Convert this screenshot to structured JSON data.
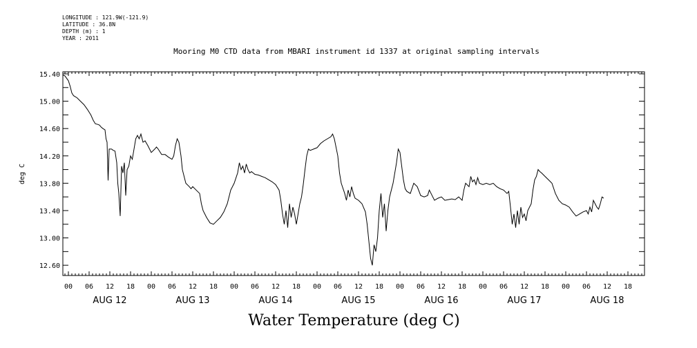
{
  "meta": {
    "lines": [
      "LONGITUDE : 121.9W(-121.9)",
      "LATITUDE : 36.8N",
      "DEPTH (m) : 1",
      "YEAR : 2011"
    ]
  },
  "chart_data": {
    "type": "line",
    "title": "Mooring M0 CTD data from MBARI instrument id 1337 at original sampling intervals",
    "xlabel": "Water Temperature (deg C)",
    "ylabel": "deg C",
    "xlim_hours": [
      0,
      168
    ],
    "ylim": [
      12.45,
      15.43
    ],
    "grid": false,
    "y_ticks": [
      "12.60",
      "13.00",
      "13.40",
      "13.80",
      "14.20",
      "14.60",
      "15.00",
      "15.40"
    ],
    "x_hour_labels": [
      "00",
      "06",
      "12",
      "18",
      "00",
      "06",
      "12",
      "18",
      "00",
      "06",
      "12",
      "18",
      "00",
      "06",
      "12",
      "18",
      "00",
      "06",
      "12",
      "18",
      "00",
      "06",
      "12",
      "18",
      "00",
      "06",
      "12",
      "18"
    ],
    "x_day_labels": [
      "AUG 12",
      "AUG 13",
      "AUG 14",
      "AUG 15",
      "AUG 16",
      "AUG 17",
      "AUG 18"
    ],
    "series": [
      {
        "points": [
          [
            -1.5,
            15.38
          ],
          [
            -1,
            15.37
          ],
          [
            0,
            15.3
          ],
          [
            0.5,
            15.22
          ],
          [
            1,
            15.12
          ],
          [
            1.5,
            15.08
          ],
          [
            2.5,
            15.05
          ],
          [
            3.5,
            15.0
          ],
          [
            4.5,
            14.95
          ],
          [
            5.5,
            14.88
          ],
          [
            6.5,
            14.8
          ],
          [
            7.2,
            14.72
          ],
          [
            7.8,
            14.67
          ],
          [
            8.5,
            14.66
          ],
          [
            9,
            14.65
          ],
          [
            9.5,
            14.62
          ],
          [
            10,
            14.6
          ],
          [
            10.6,
            14.58
          ],
          [
            10.9,
            14.45
          ],
          [
            11.2,
            14.4
          ],
          [
            11.5,
            13.84
          ],
          [
            11.8,
            14.3
          ],
          [
            12.5,
            14.3
          ],
          [
            13,
            14.28
          ],
          [
            13.5,
            14.27
          ],
          [
            14,
            14.1
          ],
          [
            14.3,
            13.8
          ],
          [
            14.6,
            13.65
          ],
          [
            15,
            13.32
          ],
          [
            15.4,
            14.05
          ],
          [
            15.8,
            13.95
          ],
          [
            16.2,
            14.1
          ],
          [
            16.6,
            13.62
          ],
          [
            17,
            14.0
          ],
          [
            17.5,
            14.05
          ],
          [
            18,
            14.2
          ],
          [
            18.5,
            14.15
          ],
          [
            19,
            14.3
          ],
          [
            19.5,
            14.45
          ],
          [
            20,
            14.5
          ],
          [
            20.5,
            14.45
          ],
          [
            21,
            14.52
          ],
          [
            21.6,
            14.4
          ],
          [
            22.2,
            14.42
          ],
          [
            23,
            14.35
          ],
          [
            24,
            14.25
          ],
          [
            25,
            14.3
          ],
          [
            25.5,
            14.33
          ],
          [
            26,
            14.3
          ],
          [
            27,
            14.22
          ],
          [
            28,
            14.22
          ],
          [
            29,
            14.18
          ],
          [
            30,
            14.15
          ],
          [
            30.5,
            14.2
          ],
          [
            31,
            14.35
          ],
          [
            31.5,
            14.45
          ],
          [
            32,
            14.4
          ],
          [
            32.6,
            14.2
          ],
          [
            33,
            14.0
          ],
          [
            34,
            13.8
          ],
          [
            35,
            13.75
          ],
          [
            35.5,
            13.72
          ],
          [
            36,
            13.75
          ],
          [
            37,
            13.7
          ],
          [
            38,
            13.65
          ],
          [
            38.5,
            13.5
          ],
          [
            39,
            13.4
          ],
          [
            40,
            13.3
          ],
          [
            41,
            13.22
          ],
          [
            42,
            13.2
          ],
          [
            43,
            13.25
          ],
          [
            44,
            13.3
          ],
          [
            45,
            13.38
          ],
          [
            46,
            13.5
          ],
          [
            46.5,
            13.6
          ],
          [
            47,
            13.7
          ],
          [
            48,
            13.8
          ],
          [
            49,
            13.95
          ],
          [
            49.5,
            14.1
          ],
          [
            50,
            14.0
          ],
          [
            50.5,
            14.05
          ],
          [
            51,
            13.95
          ],
          [
            51.5,
            14.08
          ],
          [
            52,
            14.0
          ],
          [
            52.5,
            13.95
          ],
          [
            53,
            13.97
          ],
          [
            54,
            13.93
          ],
          [
            55,
            13.92
          ],
          [
            56,
            13.9
          ],
          [
            57,
            13.88
          ],
          [
            58,
            13.85
          ],
          [
            59,
            13.82
          ],
          [
            60,
            13.78
          ],
          [
            61,
            13.7
          ],
          [
            61.5,
            13.55
          ],
          [
            62,
            13.35
          ],
          [
            62.5,
            13.2
          ],
          [
            63,
            13.4
          ],
          [
            63.5,
            13.15
          ],
          [
            64,
            13.5
          ],
          [
            64.5,
            13.3
          ],
          [
            65,
            13.45
          ],
          [
            65.5,
            13.35
          ],
          [
            66,
            13.2
          ],
          [
            66.5,
            13.35
          ],
          [
            67,
            13.5
          ],
          [
            67.5,
            13.6
          ],
          [
            68,
            13.78
          ],
          [
            68.5,
            14.0
          ],
          [
            69,
            14.2
          ],
          [
            69.5,
            14.3
          ],
          [
            70,
            14.28
          ],
          [
            71,
            14.3
          ],
          [
            72,
            14.32
          ],
          [
            73,
            14.38
          ],
          [
            74,
            14.42
          ],
          [
            75,
            14.45
          ],
          [
            76,
            14.48
          ],
          [
            76.5,
            14.52
          ],
          [
            77,
            14.45
          ],
          [
            78,
            14.2
          ],
          [
            78.5,
            13.95
          ],
          [
            79,
            13.8
          ],
          [
            80,
            13.65
          ],
          [
            80.5,
            13.55
          ],
          [
            81,
            13.7
          ],
          [
            81.5,
            13.6
          ],
          [
            82,
            13.75
          ],
          [
            82.5,
            13.65
          ],
          [
            83,
            13.58
          ],
          [
            84,
            13.55
          ],
          [
            85,
            13.5
          ],
          [
            86,
            13.38
          ],
          [
            86.5,
            13.2
          ],
          [
            87,
            12.95
          ],
          [
            87.5,
            12.7
          ],
          [
            88,
            12.6
          ],
          [
            88.5,
            12.9
          ],
          [
            89,
            12.8
          ],
          [
            89.5,
            13.0
          ],
          [
            90,
            13.4
          ],
          [
            90.5,
            13.65
          ],
          [
            91,
            13.3
          ],
          [
            91.5,
            13.5
          ],
          [
            92,
            13.1
          ],
          [
            92.5,
            13.4
          ],
          [
            93,
            13.6
          ],
          [
            94,
            13.8
          ],
          [
            95,
            14.1
          ],
          [
            95.5,
            14.3
          ],
          [
            96,
            14.25
          ],
          [
            96.5,
            14.05
          ],
          [
            97,
            13.85
          ],
          [
            97.5,
            13.72
          ],
          [
            98,
            13.68
          ],
          [
            99,
            13.65
          ],
          [
            100,
            13.8
          ],
          [
            101,
            13.75
          ],
          [
            102,
            13.62
          ],
          [
            103,
            13.6
          ],
          [
            104,
            13.62
          ],
          [
            104.5,
            13.7
          ],
          [
            105,
            13.65
          ],
          [
            105.5,
            13.6
          ],
          [
            106,
            13.55
          ],
          [
            107,
            13.58
          ],
          [
            108,
            13.6
          ],
          [
            109,
            13.55
          ],
          [
            110,
            13.56
          ],
          [
            111,
            13.57
          ],
          [
            112,
            13.56
          ],
          [
            113,
            13.6
          ],
          [
            114,
            13.55
          ],
          [
            114.5,
            13.7
          ],
          [
            115,
            13.8
          ],
          [
            116,
            13.75
          ],
          [
            116.5,
            13.9
          ],
          [
            117,
            13.82
          ],
          [
            117.5,
            13.85
          ],
          [
            118,
            13.78
          ],
          [
            118.5,
            13.88
          ],
          [
            119,
            13.8
          ],
          [
            120,
            13.78
          ],
          [
            121,
            13.8
          ],
          [
            122,
            13.78
          ],
          [
            123,
            13.8
          ],
          [
            124,
            13.75
          ],
          [
            125,
            13.72
          ],
          [
            126,
            13.7
          ],
          [
            127,
            13.65
          ],
          [
            127.5,
            13.68
          ],
          [
            128,
            13.45
          ],
          [
            128.5,
            13.2
          ],
          [
            129,
            13.35
          ],
          [
            129.5,
            13.15
          ],
          [
            130,
            13.4
          ],
          [
            130.5,
            13.2
          ],
          [
            131,
            13.45
          ],
          [
            131.5,
            13.3
          ],
          [
            132,
            13.35
          ],
          [
            132.5,
            13.25
          ],
          [
            133,
            13.4
          ],
          [
            134,
            13.5
          ],
          [
            134.5,
            13.7
          ],
          [
            135,
            13.85
          ],
          [
            135.5,
            13.9
          ],
          [
            136,
            14.0
          ],
          [
            136.5,
            13.97
          ],
          [
            137,
            13.95
          ],
          [
            138,
            13.9
          ],
          [
            139,
            13.85
          ],
          [
            140,
            13.8
          ],
          [
            141,
            13.65
          ],
          [
            142,
            13.55
          ],
          [
            143,
            13.5
          ],
          [
            144,
            13.48
          ],
          [
            145,
            13.45
          ],
          [
            146,
            13.38
          ],
          [
            147,
            13.32
          ],
          [
            148,
            13.35
          ],
          [
            149,
            13.38
          ],
          [
            150,
            13.4
          ],
          [
            150.5,
            13.35
          ],
          [
            151,
            13.45
          ],
          [
            151.5,
            13.38
          ],
          [
            152,
            13.55
          ],
          [
            152.5,
            13.5
          ],
          [
            153,
            13.45
          ],
          [
            153.5,
            13.42
          ],
          [
            154,
            13.5
          ],
          [
            154.5,
            13.6
          ],
          [
            155,
            13.58
          ]
        ]
      }
    ]
  }
}
